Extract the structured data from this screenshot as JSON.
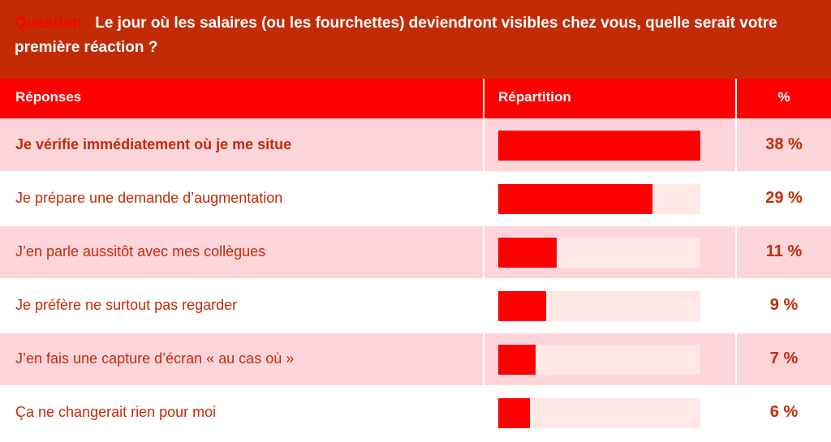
{
  "question": {
    "label": "Question :",
    "text": " Le jour où les salaires (ou les fourchettes) deviendront visibles chez vous, quelle serait votre première réaction ?"
  },
  "table": {
    "headers": [
      "Réponses",
      "Répartition",
      "%"
    ]
  },
  "colors": {
    "question_bg": "#c32b06",
    "header_bg": "#ff0000",
    "bar_fill": "#ff0000",
    "bar_track": "#ffe8e6",
    "row_shade": "#ffd5dc",
    "text": "#c32b06"
  },
  "chart_data": {
    "type": "bar",
    "categories": [
      "Je vérifie immédiatement où je me situe",
      "Je prépare une demande d’augmentation",
      "J’en parle aussitôt avec mes collègues",
      "Je préfère ne surtout pas regarder",
      "J’en fais une capture d’écran « au cas où »",
      "Ça ne changerait rien pour moi"
    ],
    "values": [
      38,
      29,
      11,
      9,
      7,
      6
    ],
    "value_labels": [
      "38 %",
      "29 %",
      "11 %",
      "9 %",
      "7 %",
      "6 %"
    ],
    "xlim": [
      0,
      38
    ]
  }
}
